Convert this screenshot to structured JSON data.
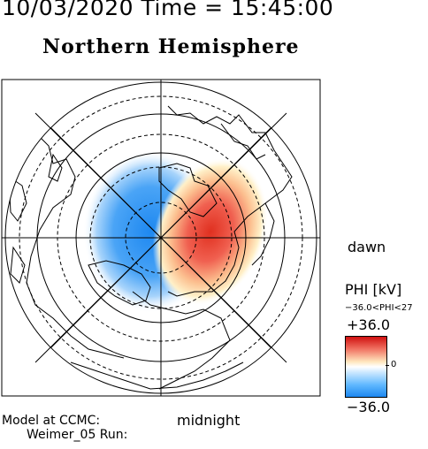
{
  "header": {
    "timestamp": "10/03/2020 Time = 15:45:00",
    "hemisphere": "Northern Hemisphere"
  },
  "map": {
    "labels": {
      "dawn": "dawn",
      "midnight": "midnight"
    },
    "colors": {
      "positive": "#d01010",
      "negative": "#1e88f0",
      "neutral": "#ffffff",
      "grid": "#000000"
    }
  },
  "colorbar": {
    "title": "PHI [kV]",
    "range_text": "−36.0<PHI<27",
    "max_label": "+36.0",
    "zero_label": "0",
    "min_label": "−36.0"
  },
  "footer": {
    "model_line": "Model at CCMC:",
    "run_line": "Weimer_05 Run:"
  }
}
